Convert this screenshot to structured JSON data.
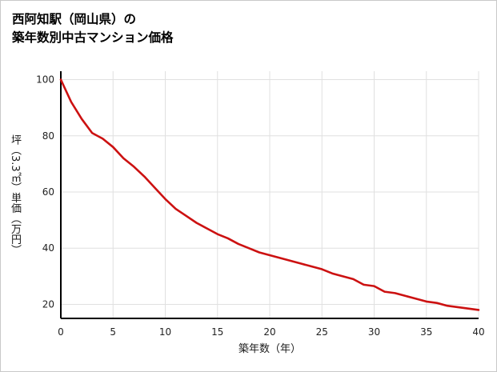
{
  "header": {
    "title_line1": "西阿知駅（岡山県）の",
    "title_line2": "築年数別中古マンション価格"
  },
  "chart_data": {
    "type": "line",
    "title": "西阿知駅（岡山県）の築年数別中古マンション価格",
    "xlabel": "築年数（年）",
    "ylabel": "坪（3.3㎡）単価（万円）",
    "x": [
      0,
      1,
      2,
      3,
      4,
      5,
      6,
      7,
      8,
      9,
      10,
      11,
      12,
      13,
      14,
      15,
      16,
      17,
      18,
      19,
      20,
      21,
      22,
      23,
      24,
      25,
      26,
      27,
      28,
      29,
      30,
      31,
      32,
      33,
      34,
      35,
      36,
      37,
      38,
      39,
      40
    ],
    "y": [
      100,
      92,
      86,
      81,
      79,
      76,
      72,
      69,
      65.5,
      61.5,
      57.5,
      54,
      51.5,
      49,
      47,
      45,
      43.5,
      41.5,
      40,
      38.5,
      37.5,
      36.5,
      35.5,
      34.5,
      33.5,
      32.5,
      31,
      30,
      29,
      27,
      26.5,
      24.5,
      24,
      23,
      22,
      21,
      20.5,
      19.5,
      19,
      18.5,
      18
    ],
    "xlim": [
      0,
      40
    ],
    "ylim": [
      15,
      103
    ],
    "xticks": [
      0,
      5,
      10,
      15,
      20,
      25,
      30,
      35,
      40
    ],
    "yticks": [
      20,
      40,
      60,
      80,
      100
    ],
    "grid": true,
    "grid_color": "#e0e0e0",
    "axis_color": "#000000",
    "line_color": "#cc1111",
    "legend": "none"
  }
}
